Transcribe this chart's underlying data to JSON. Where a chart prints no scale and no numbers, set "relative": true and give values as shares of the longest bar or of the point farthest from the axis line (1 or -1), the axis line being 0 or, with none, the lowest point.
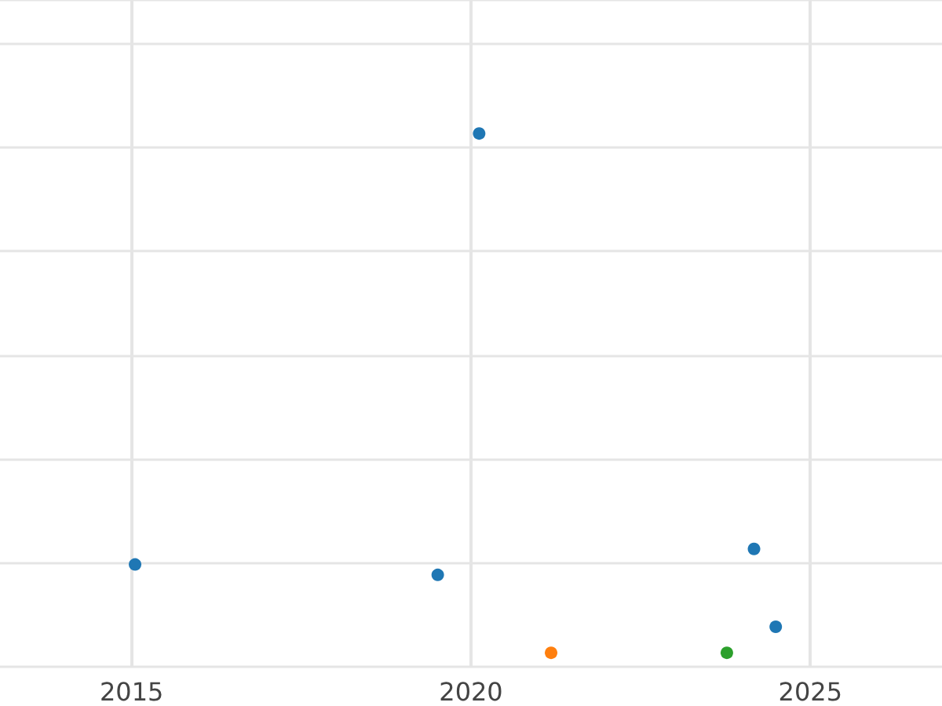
{
  "chart_data": {
    "type": "scatter",
    "relative": true,
    "xlim": [
      2013.06,
      2026.94
    ],
    "xticks": [
      2015,
      2020,
      2025
    ],
    "grid": true,
    "marker": "circle",
    "series": [
      {
        "color": "#1f77b4",
        "x": [
          2015.05,
          2019.51,
          2020.12,
          2024.17,
          2024.49
        ],
        "values": [
          0.17,
          0.15,
          1,
          0.2,
          0.05
        ]
      },
      {
        "color": "#ff7f0e",
        "x": [
          2021.18
        ],
        "values": [
          0
        ]
      },
      {
        "color": "#2ca02c",
        "x": [
          2023.77
        ],
        "values": [
          0
        ]
      }
    ]
  }
}
